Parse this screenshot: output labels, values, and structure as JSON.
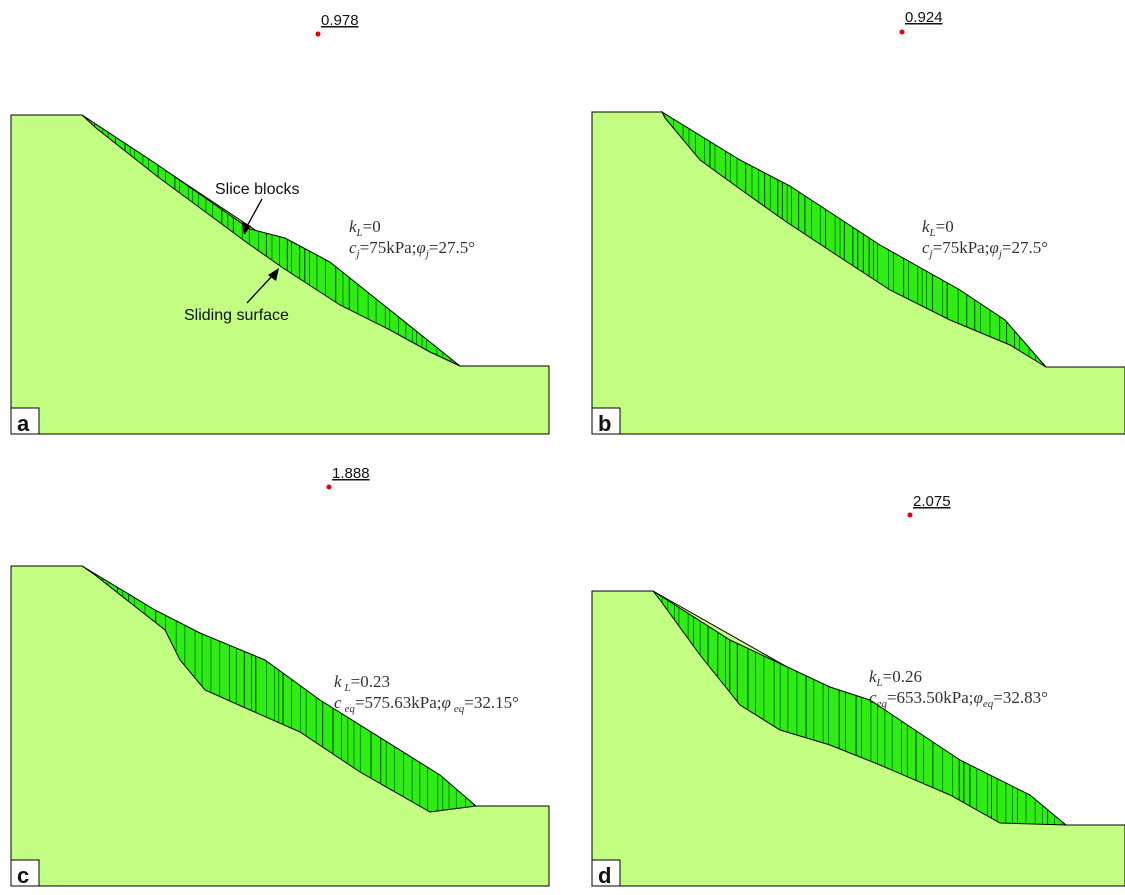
{
  "colors": {
    "slope": "#c3fe82",
    "slice": "#2ded13",
    "marker": "#e00000",
    "outline": "#000000"
  },
  "panels": [
    {
      "label": "a",
      "fos": "0.978",
      "param_line1": [
        "k",
        "L",
        "=0"
      ],
      "param_line2": [
        "c",
        "j",
        "=75kPa;",
        "φ",
        "j",
        "=27.5°"
      ],
      "annotations": {
        "slice_blocks": "Slice blocks",
        "sliding_surface": "Sliding surface"
      }
    },
    {
      "label": "b",
      "fos": "0.924",
      "param_line1": [
        "k",
        "L",
        "=0"
      ],
      "param_line2": [
        "c",
        "j",
        "=75kPa;",
        "φ",
        "j",
        "=27.5°"
      ]
    },
    {
      "label": "c",
      "fos": "1.888",
      "param_line1": [
        "k",
        "L",
        "=0.23"
      ],
      "param_line2": [
        "c",
        "eq",
        "=575.63kPa;",
        "φ",
        "eq",
        "=32.15°"
      ]
    },
    {
      "label": "d",
      "fos": "2.075",
      "param_line1": [
        "k",
        "L",
        "=0.26"
      ],
      "param_line2": [
        "c",
        "eq",
        "=653.50kPa;",
        "φ",
        "eq",
        "=32.83°"
      ]
    }
  ]
}
